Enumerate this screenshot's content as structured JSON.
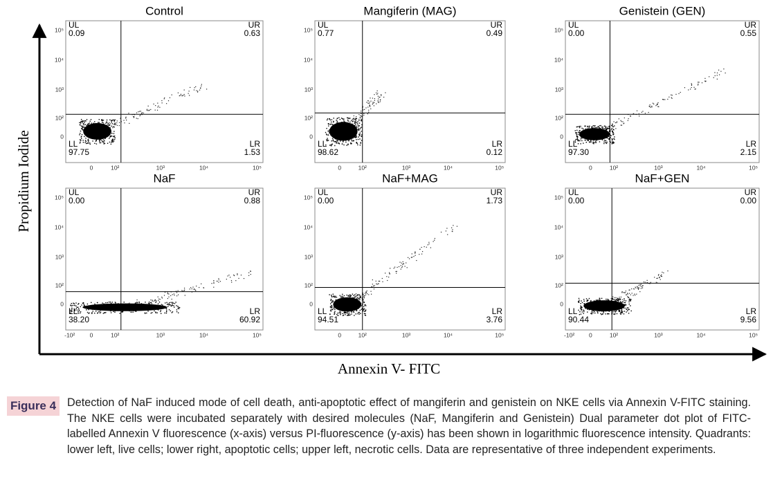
{
  "figure": {
    "y_axis_label": "Propidium Iodide",
    "x_axis_label": "Annexin V- FITC",
    "panels": [
      {
        "title": "Control",
        "quadrants": [
          {
            "label": "UL",
            "value": "0.09"
          },
          {
            "label": "UR",
            "value": "0.63"
          },
          {
            "label": "LL",
            "value": "97.75"
          },
          {
            "label": "LR",
            "value": "1.53"
          }
        ],
        "xticks": [
          "0",
          "10²",
          "10³",
          "10⁴",
          "10⁵"
        ],
        "yticks": [
          "10⁵",
          "10⁴",
          "10³",
          "10²",
          "0"
        ]
      },
      {
        "title": "Mangiferin (MAG)",
        "quadrants": [
          {
            "label": "UL",
            "value": "0.77"
          },
          {
            "label": "UR",
            "value": "0.49"
          },
          {
            "label": "LL",
            "value": "98.62"
          },
          {
            "label": "LR",
            "value": "0.12"
          }
        ],
        "xticks": [
          "0",
          "10²",
          "10³",
          "10⁴",
          "10⁵"
        ],
        "yticks": [
          "10⁵",
          "10⁴",
          "10³",
          "10²",
          "0"
        ]
      },
      {
        "title": "Genistein (GEN)",
        "quadrants": [
          {
            "label": "UL",
            "value": "0.00"
          },
          {
            "label": "UR",
            "value": "0.55"
          },
          {
            "label": "LL",
            "value": "97.30"
          },
          {
            "label": "LR",
            "value": "2.15"
          }
        ],
        "xticks": [
          "0",
          "10²",
          "10³",
          "10⁴",
          "10⁵"
        ],
        "yticks": [
          "10⁵",
          "10⁴",
          "10³",
          "10²",
          "0"
        ]
      },
      {
        "title": "NaF",
        "quadrants": [
          {
            "label": "UL",
            "value": "0.00"
          },
          {
            "label": "UR",
            "value": "0.88"
          },
          {
            "label": "LL",
            "value": "38.20"
          },
          {
            "label": "LR",
            "value": "60.92"
          }
        ],
        "xticks": [
          "-10²",
          "0",
          "10²",
          "10³",
          "10⁴",
          "10⁵"
        ],
        "yticks": [
          "10⁵",
          "10⁴",
          "10³",
          "10²",
          "0"
        ]
      },
      {
        "title": "NaF+MAG",
        "quadrants": [
          {
            "label": "UL",
            "value": "0.00"
          },
          {
            "label": "UR",
            "value": "1.73"
          },
          {
            "label": "LL",
            "value": "94.51"
          },
          {
            "label": "LR",
            "value": "3.76"
          }
        ],
        "xticks": [
          "0",
          "10²",
          "10³",
          "10⁴",
          "10⁵"
        ],
        "yticks": [
          "10⁵",
          "10⁴",
          "10³",
          "10²",
          "0"
        ]
      },
      {
        "title": "NaF+GEN",
        "quadrants": [
          {
            "label": "UL",
            "value": "0.00"
          },
          {
            "label": "UR",
            "value": "0.00"
          },
          {
            "label": "LL",
            "value": "90.44"
          },
          {
            "label": "LR",
            "value": "9.56"
          }
        ],
        "xticks": [
          "-10²",
          "0",
          "10²",
          "10³",
          "10⁴",
          "10⁵"
        ],
        "yticks": [
          "10⁵",
          "10⁴",
          "10³",
          "10²",
          "0"
        ]
      }
    ]
  },
  "caption": {
    "tag": "Figure 4",
    "text": "Detection of NaF induced mode of cell death, anti-apoptotic effect of mangiferin and genistein on NKE cells via Annexin V-FITC staining. The NKE cells were incubated separately with desired molecules (NaF, Mangiferin and Genistein) Dual parameter dot plot of FITC-labelled Annexin V fluorescence (x-axis) versus PI-fluorescence (y-axis) has been shown in logarithmic fluorescence intensity. Quadrants: lower left, live cells; lower right, apoptotic cells; upper left, necrotic cells. Data are representative of three independent experiments."
  }
}
